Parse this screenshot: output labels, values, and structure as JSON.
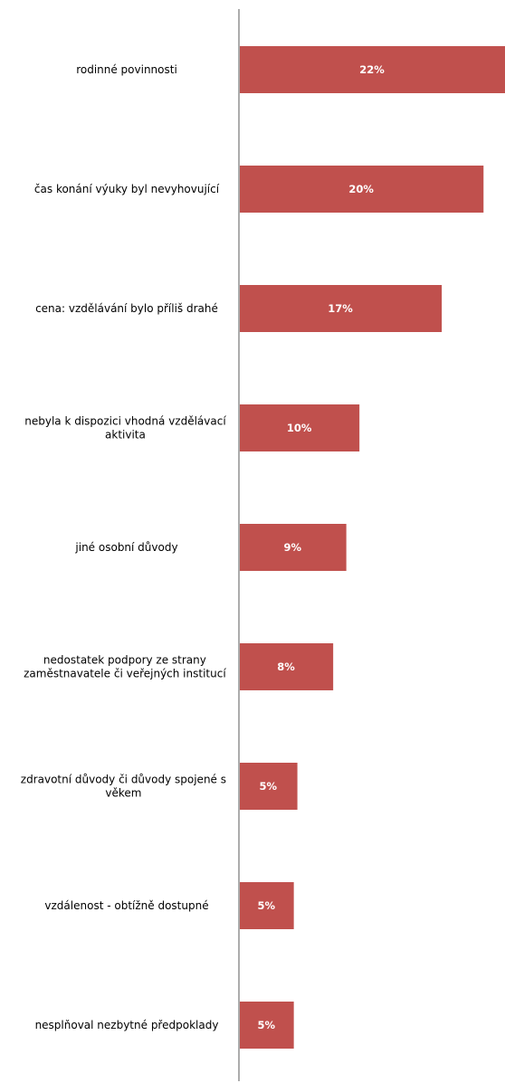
{
  "chart_data": {
    "type": "bar",
    "orientation": "horizontal",
    "categories": [
      "rodinné povinnosti",
      "čas konání výuky byl nevyhovující",
      "cena: vzdělávání bylo příliš drahé",
      "nebyla k dispozici vhodná vzdělávací aktivita",
      "jiné osobní důvody",
      "nedostatek podpory ze strany zaměstnavatele či veřejných institucí",
      "zdravotní důvody či důvody spojené s věkem",
      "vzdálenost - obtížně dostupné",
      "nesplňoval nezbytné předpoklady"
    ],
    "category_lines": [
      [
        "rodinné povinnosti"
      ],
      [
        "čas konání výuky byl nevyhovující"
      ],
      [
        "cena: vzdělávání bylo příliš drahé"
      ],
      [
        "nebyla k dispozici vhodná vzdělávací",
        "aktivita"
      ],
      [
        "jiné osobní důvody"
      ],
      [
        "nedostatek podpory ze strany",
        "zaměstnavatele či veřejných institucí"
      ],
      [
        "zdravotní důvody či důvody spojené s",
        "věkem"
      ],
      [
        "vzdálenost - obtížně dostupné"
      ],
      [
        "nesplňoval nezbytné předpoklady"
      ]
    ],
    "values": [
      22,
      20,
      17,
      10,
      9,
      8,
      5,
      5,
      5
    ],
    "plotted_values": [
      22.3,
      20.5,
      17.0,
      10.1,
      9.0,
      7.9,
      4.9,
      4.6,
      4.6
    ],
    "value_labels": [
      "22%",
      "20%",
      "17%",
      "10%",
      "9%",
      "8%",
      "5%",
      "5%",
      "5%"
    ],
    "unit": "%",
    "bar_color": "#c0504d",
    "axis_color": "#808080",
    "xlim": [
      0,
      22.3
    ],
    "grid": false,
    "legend": "none"
  }
}
